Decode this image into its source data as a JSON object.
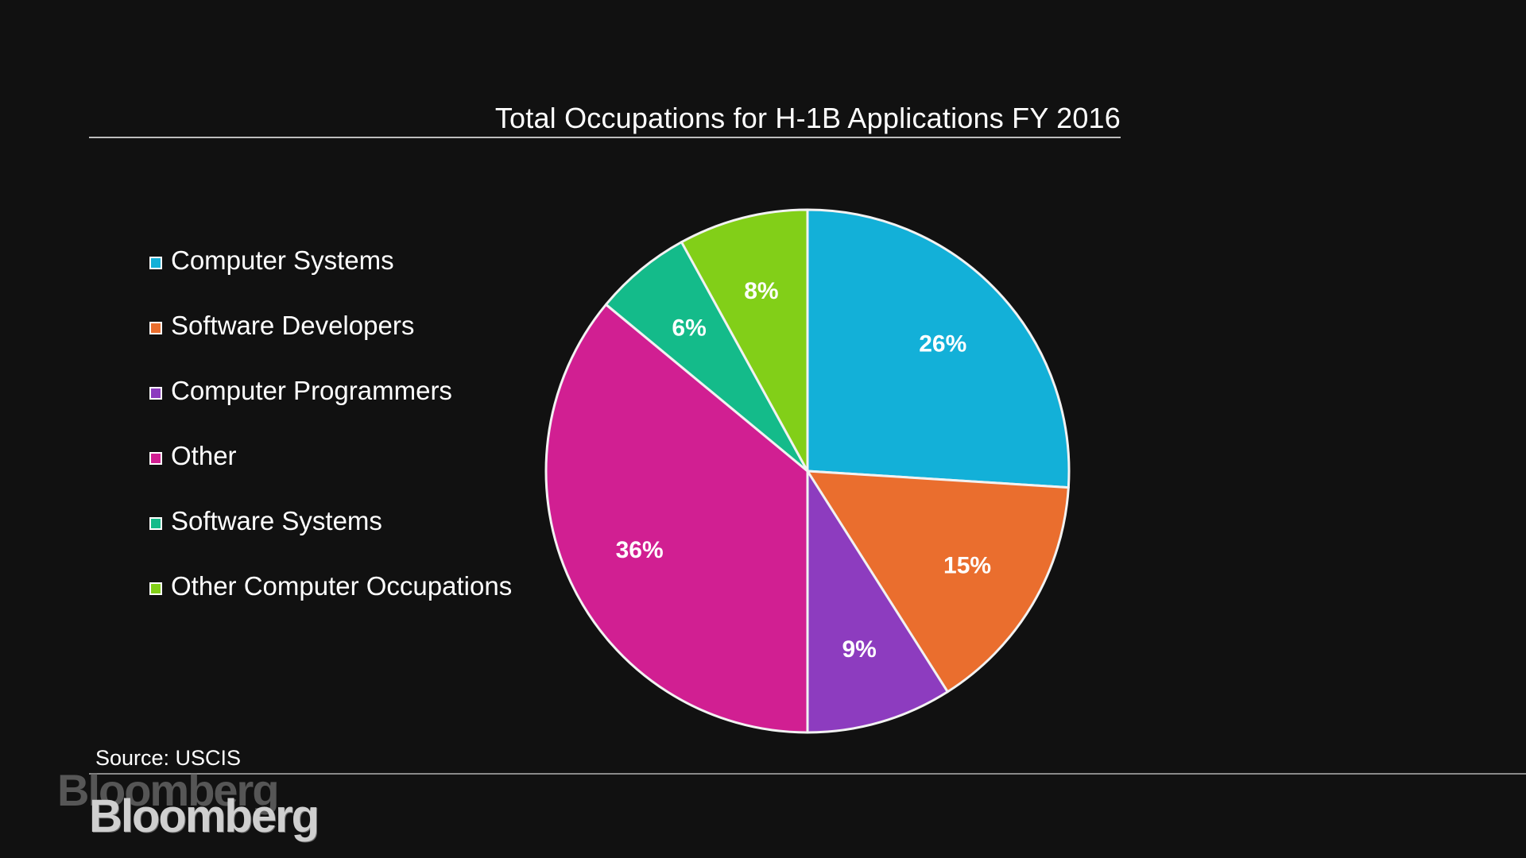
{
  "chart_data": {
    "type": "pie",
    "title": "Total Occupations for H-1B Applications FY 2016",
    "categories": [
      "Computer Systems",
      "Software Developers",
      "Computer Programmers",
      "Other",
      "Software Systems",
      "Other Computer Occupations"
    ],
    "values": [
      26,
      15,
      9,
      36,
      6,
      8
    ],
    "value_labels": [
      "26%",
      "15%",
      "9%",
      "36%",
      "6%",
      "8%"
    ],
    "colors": [
      "#13b0d8",
      "#ea6e2e",
      "#8d3cbf",
      "#d11f92",
      "#14bb8a",
      "#82cf18"
    ],
    "legend_placement": "left",
    "source": "Source: USCIS"
  },
  "branding": {
    "logo": "Bloomberg",
    "watermark": "Bloomberg"
  }
}
